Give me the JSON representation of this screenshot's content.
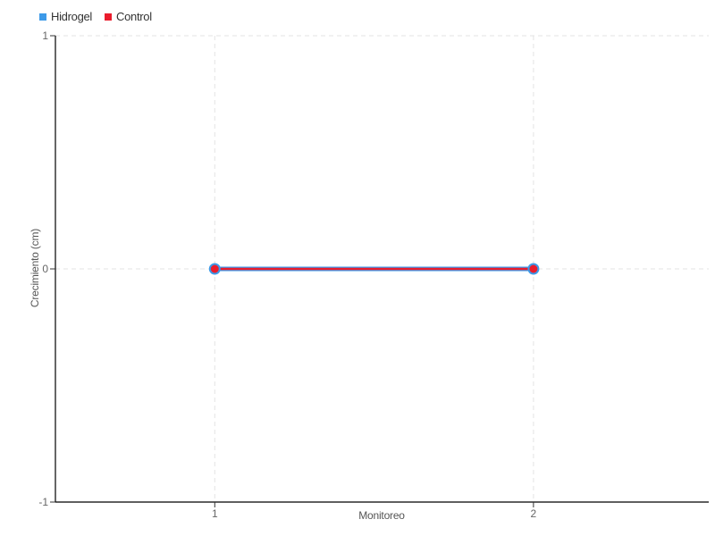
{
  "chart_data": {
    "type": "line",
    "x": [
      1,
      2
    ],
    "series": [
      {
        "name": "Hidrogel",
        "color": "#3D9AE8",
        "values": [
          0,
          0
        ]
      },
      {
        "name": "Control",
        "color": "#EA1C2C",
        "values": [
          0,
          0
        ]
      }
    ],
    "title": "",
    "xlabel": "Monitoreo",
    "ylabel": "Crecimiento (cm)",
    "x_range": [
      0.5,
      2.55
    ],
    "ylim": [
      -1,
      1
    ],
    "x_ticks": [
      {
        "value": 1,
        "label": "1"
      },
      {
        "value": 2,
        "label": "2"
      }
    ],
    "y_ticks": [
      {
        "value": 1,
        "label": "1"
      },
      {
        "value": 0,
        "label": "0"
      },
      {
        "value": -1,
        "label": "-1"
      }
    ],
    "grid": "dashed",
    "legend_position": "top-left",
    "colors": {
      "axis": "#000000",
      "tick": "#333333",
      "grid": "#e3e3e3",
      "tick_label": "#666666",
      "axis_title": "#555555"
    }
  }
}
